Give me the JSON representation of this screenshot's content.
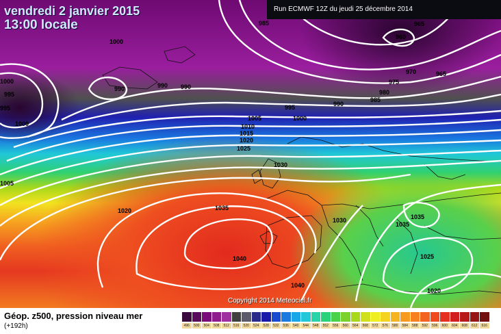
{
  "header": {
    "date": "vendredi 2 janvier 2015",
    "time": "13:00 locale",
    "run": "Run ECMWF 12Z du jeudi 25 décembre 2014"
  },
  "copyright": "Copyright 2014 Meteociel.fr",
  "footer": {
    "title": "Géop. z500, pression niveau mer",
    "subtitle": "(+192h)"
  },
  "legend": {
    "values": [
      "496",
      "500",
      "504",
      "508",
      "512",
      "516",
      "520",
      "524",
      "528",
      "532",
      "536",
      "540",
      "544",
      "548",
      "552",
      "556",
      "560",
      "564",
      "568",
      "572",
      "576",
      "580",
      "584",
      "588",
      "592",
      "596",
      "600",
      "604",
      "608",
      "612",
      "616"
    ],
    "colors": [
      "#3a0a3f",
      "#5a0a5a",
      "#7a0a7a",
      "#8e1a8e",
      "#a030a0",
      "#404040",
      "#5a5a6a",
      "#2a2a8a",
      "#1a1aaa",
      "#1a4ad0",
      "#1a7ae0",
      "#19a6e8",
      "#22c8d8",
      "#26d4a8",
      "#2ad27a",
      "#4ad24a",
      "#7ad22a",
      "#a8d81a",
      "#d0e01a",
      "#eeee20",
      "#f4d420",
      "#f6b420",
      "#f79a20",
      "#f78020",
      "#f46420",
      "#f04a20",
      "#e63020",
      "#d21e1e",
      "#b81a1a",
      "#961616",
      "#721010"
    ]
  },
  "map": {
    "isobar_labels": [
      {
        "text": "985"
      },
      {
        "text": "960"
      },
      {
        "text": "965"
      },
      {
        "text": "965"
      },
      {
        "text": "970"
      },
      {
        "text": "975"
      },
      {
        "text": "980"
      },
      {
        "text": "985"
      },
      {
        "text": "990"
      },
      {
        "text": "995"
      },
      {
        "text": "1000"
      },
      {
        "text": "990"
      },
      {
        "text": "990"
      },
      {
        "text": "990"
      },
      {
        "text": "995"
      },
      {
        "text": "995"
      },
      {
        "text": "1000"
      },
      {
        "text": "1000"
      },
      {
        "text": "1005"
      },
      {
        "text": "1010"
      },
      {
        "text": "1015"
      },
      {
        "text": "1020"
      },
      {
        "text": "1025"
      },
      {
        "text": "1030"
      },
      {
        "text": "1035"
      },
      {
        "text": "1040"
      },
      {
        "text": "1040"
      },
      {
        "text": "1020"
      },
      {
        "text": "1005"
      },
      {
        "text": "1030"
      },
      {
        "text": "1035"
      },
      {
        "text": "1035"
      },
      {
        "text": "1025"
      },
      {
        "text": "1020"
      },
      {
        "text": "1000"
      }
    ]
  }
}
